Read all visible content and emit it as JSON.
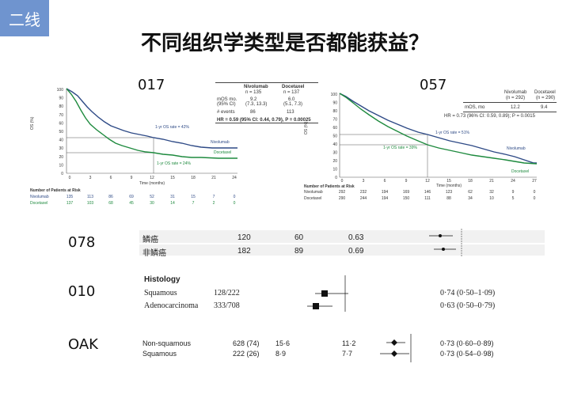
{
  "tag": "二线",
  "title": "不同组织学类型是否都能获益？",
  "studies": {
    "s017": "017",
    "s057": "057",
    "s078": "078",
    "s010": "010",
    "soak": "OAK"
  },
  "c017": {
    "head_nivo": "Nivolumab",
    "head_nivo_n": "n = 135",
    "head_doc": "Docetaxel",
    "head_doc_n": "n = 137",
    "row_mos": "mOS mo.",
    "row_mos2": "(95% CI)",
    "nivo_mos": "9.2",
    "nivo_ci": "(7.3, 13.3)",
    "doc_mos": "6.0",
    "doc_ci": "(5.1, 7.3)",
    "row_events": "# events",
    "nivo_events": "86",
    "doc_events": "113",
    "hr": "HR = 0.59 (95% CI: 0.44, 0.79), P = 0.00025",
    "nivo_rate": "1-yr OS rate = 42%",
    "doc_rate": "1-yr OS rate = 24%",
    "nivo_label": "Nivolumab",
    "doc_label": "Docetaxel",
    "ylabel": "OS (%)",
    "xlabel": "Time (months)",
    "yticks": [
      "100",
      "90",
      "80",
      "70",
      "60",
      "50",
      "40",
      "30",
      "20",
      "10",
      "0"
    ],
    "xticks": [
      "0",
      "3",
      "6",
      "9",
      "12",
      "15",
      "18",
      "21",
      "24"
    ],
    "risk_title": "Number of Patients at Risk",
    "risk_nivo": [
      "Nivolumab",
      "135",
      "113",
      "86",
      "69",
      "52",
      "31",
      "15",
      "7",
      "0"
    ],
    "risk_doc": [
      "Docetaxel",
      "137",
      "103",
      "68",
      "45",
      "30",
      "14",
      "7",
      "2",
      "0"
    ]
  },
  "c057": {
    "head_nivo": "Nivolumab",
    "head_nivo_n": "(n = 292)",
    "head_doc": "Docetaxel",
    "head_doc_n": "(n = 290)",
    "row_mos": "mOS, mo",
    "nivo_mos": "12.2",
    "doc_mos": "9.4",
    "hr": "HR = 0.73 (96% CI: 0.59, 0.89); P = 0.0015",
    "nivo_rate": "1-yr OS rate = 51%",
    "doc_rate": "1-yr OS rate = 39%",
    "nivo_label": "Nivolumab",
    "doc_label": "Docetaxel",
    "ylabel": "OS (%)",
    "xlabel": "Time (months)",
    "yticks": [
      "100",
      "90",
      "80",
      "70",
      "60",
      "50",
      "40",
      "30",
      "20",
      "10",
      "0"
    ],
    "xticks": [
      "0",
      "3",
      "6",
      "9",
      "12",
      "15",
      "18",
      "21",
      "24",
      "27"
    ],
    "risk_title": "Number of Patients at Risk",
    "risk_nivo": [
      "Nivolumab",
      "292",
      "232",
      "194",
      "169",
      "146",
      "123",
      "62",
      "32",
      "9",
      "0"
    ],
    "risk_doc": [
      "Docetaxel",
      "290",
      "244",
      "194",
      "150",
      "111",
      "88",
      "34",
      "10",
      "5",
      "0"
    ]
  },
  "f078": {
    "rows": [
      {
        "label": "鳞癌",
        "a": "120",
        "b": "60",
        "hr": "0.63"
      },
      {
        "label": "非鳞癌",
        "a": "182",
        "b": "89",
        "hr": "0.69"
      }
    ]
  },
  "f010": {
    "heading": "Histology",
    "rows": [
      {
        "label": "Squamous",
        "n": "128/222",
        "hr": "0·74 (0·50–1·09)"
      },
      {
        "label": "Adenocarcinoma",
        "n": "333/708",
        "hr": "0·63 (0·50–0·79)"
      }
    ]
  },
  "foak": {
    "rows": [
      {
        "label": "Non-squamous",
        "n": "628 (74)",
        "a": "15·6",
        "b": "11·2",
        "hr": "0·73 (0·60–0·89)"
      },
      {
        "label": "Squamous",
        "n": "222 (26)",
        "a": "8·9",
        "b": "7·7",
        "hr": "0·73 (0·54–0·98)"
      }
    ]
  },
  "colors": {
    "nivo": "#2e4a86",
    "doc": "#1e8a3e",
    "tag": "#6f94cf"
  }
}
